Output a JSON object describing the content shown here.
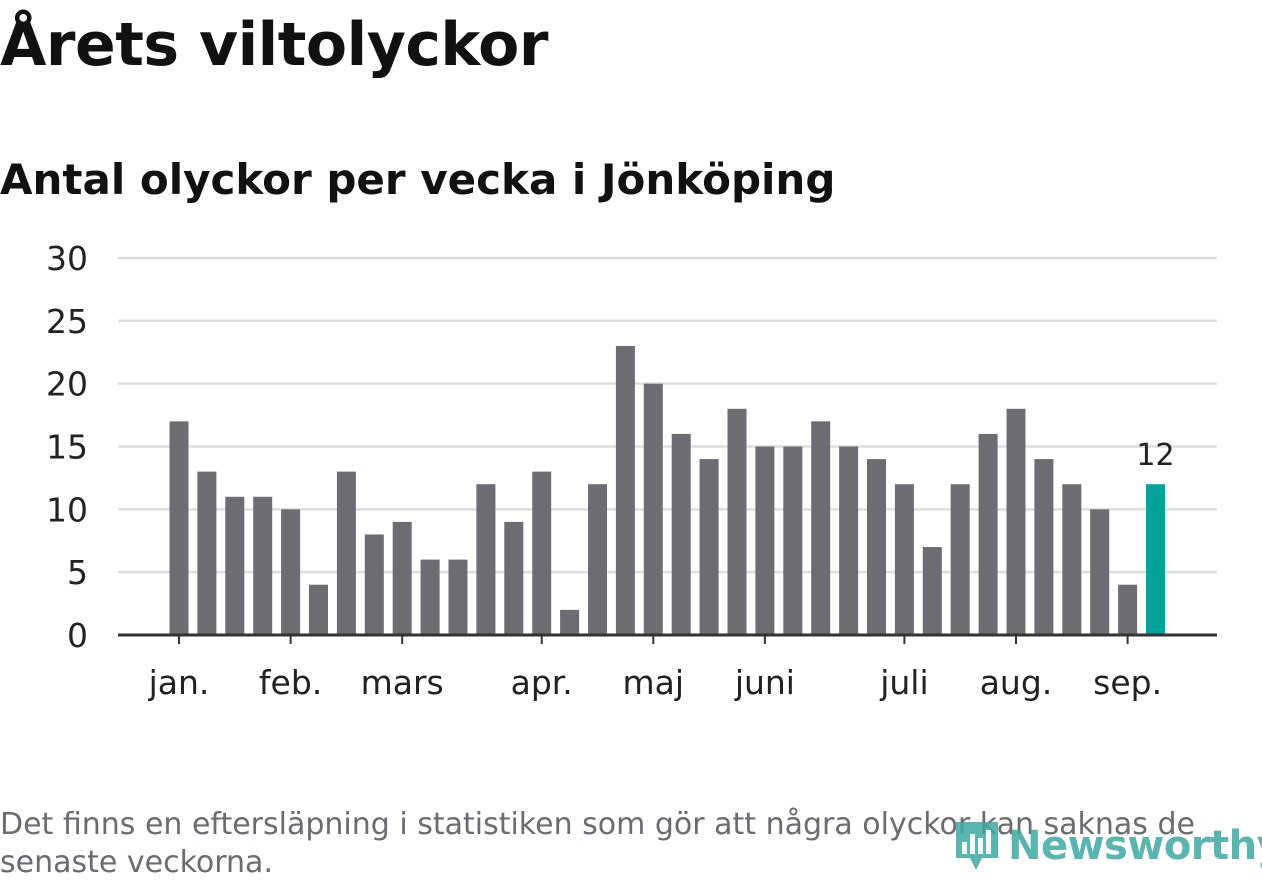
{
  "title": "Årets viltolyckor",
  "subtitle": "Antal olyckor per vecka i Jönköping",
  "footnote": "Det finns en eftersläpning i statistiken som gör att några olyckor kan saknas de senaste veckorna.",
  "logo_text": "Newsworthy",
  "colors": {
    "bar": "#6d6c72",
    "highlight": "#00a39a",
    "grid": "#dedede",
    "axis": "#333333",
    "tick_text": "#222222",
    "logo": "#3fa7a0"
  },
  "chart_data": {
    "type": "bar",
    "title": "Årets viltolyckor",
    "subtitle": "Antal olyckor per vecka i Jönköping",
    "xlabel": "",
    "ylabel": "",
    "ylim": [
      0,
      30
    ],
    "yticks": [
      0,
      5,
      10,
      15,
      20,
      25,
      30
    ],
    "grid": true,
    "values": [
      17,
      13,
      11,
      11,
      10,
      4,
      13,
      8,
      9,
      6,
      6,
      12,
      9,
      13,
      2,
      12,
      23,
      20,
      16,
      14,
      18,
      15,
      15,
      17,
      15,
      14,
      12,
      7,
      12,
      16,
      18,
      14,
      12,
      10,
      4,
      12
    ],
    "highlight_index": 35,
    "highlight_label": "12",
    "month_labels": [
      {
        "label": "jan.",
        "week": 0
      },
      {
        "label": "feb.",
        "week": 4
      },
      {
        "label": "mars",
        "week": 8
      },
      {
        "label": "apr.",
        "week": 13
      },
      {
        "label": "maj",
        "week": 17
      },
      {
        "label": "juni",
        "week": 21
      },
      {
        "label": "juli",
        "week": 26
      },
      {
        "label": "aug.",
        "week": 30
      },
      {
        "label": "sep.",
        "week": 34
      }
    ]
  }
}
